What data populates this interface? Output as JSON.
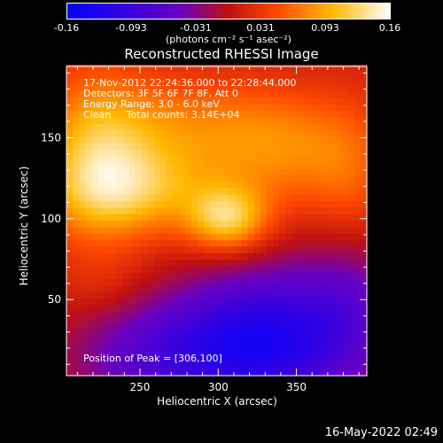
{
  "chart_data": {
    "type": "heatmap",
    "title": "Reconstructed RHESSI Image",
    "xlabel": "Heliocentric X (arcsec)",
    "ylabel": "Heliocentric Y (arcsec)",
    "xlim": [
      203,
      395
    ],
    "ylim": [
      3,
      194
    ],
    "x_ticks": [
      250,
      300,
      350
    ],
    "y_ticks": [
      50,
      100,
      150
    ],
    "colorbar": {
      "min": -0.16,
      "max": 0.16,
      "ticks": [
        "-0.16",
        "-0.093",
        "-0.031",
        "0.031",
        "0.093",
        "0.16"
      ],
      "unit_label": "(photons cm⁻² s⁻¹ asec⁻²)"
    },
    "annotations": [
      "17-Nov-2012 22:24:36.000 to 22:28:44.000",
      "Detectors: 3F 5F 6F 7F 8F, Att 0",
      "Energy Range: 3.0 - 6.0 keV",
      "Clean     Total counts: 3.14E+04"
    ],
    "peak_label": "Position of Peak = [306,100]",
    "peak": [
      306,
      100
    ],
    "components": [
      {
        "x": 306,
        "y": 100,
        "amplitude": 0.1,
        "sx": 18,
        "sy": 14
      },
      {
        "x": 245,
        "y": 118,
        "amplitude": 0.085,
        "sx": 40,
        "sy": 20
      },
      {
        "x": 222,
        "y": 140,
        "amplitude": 0.065,
        "sx": 25,
        "sy": 38
      },
      {
        "x": 275,
        "y": 158,
        "amplitude": 0.055,
        "sx": 55,
        "sy": 22
      },
      {
        "x": 345,
        "y": 140,
        "amplitude": 0.05,
        "sx": 35,
        "sy": 25
      },
      {
        "x": 385,
        "y": 120,
        "amplitude": 0.035,
        "sx": 20,
        "sy": 35
      },
      {
        "x": 225,
        "y": 60,
        "amplitude": 0.015,
        "sx": 20,
        "sy": 15
      },
      {
        "x": 330,
        "y": 25,
        "amplitude": -0.13,
        "sx": 40,
        "sy": 30
      },
      {
        "x": 260,
        "y": 15,
        "amplitude": -0.07,
        "sx": 40,
        "sy": 25
      },
      {
        "x": 385,
        "y": 50,
        "amplitude": -0.05,
        "sx": 25,
        "sy": 35
      }
    ],
    "baseline": 0.01
  },
  "footer_date": "16-May-2022 02:49"
}
